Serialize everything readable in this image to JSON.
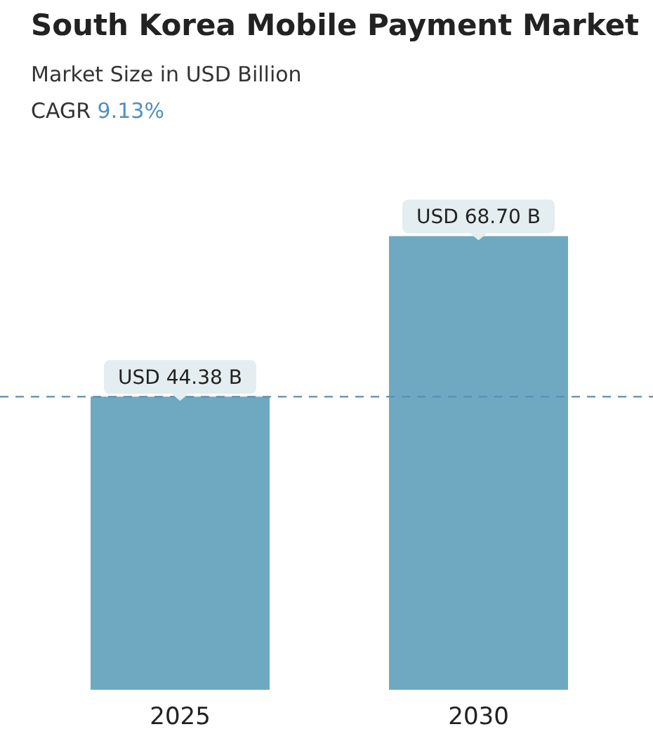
{
  "chart_data": {
    "type": "bar",
    "title": "South Korea Mobile Payment Market",
    "subtitle": "Market Size in USD Billion",
    "annotations": [
      "CAGR 9.13%"
    ],
    "categories": [
      "2025",
      "2030"
    ],
    "values": [
      44.38,
      68.7
    ],
    "color": "#6ea9c1",
    "value_labels": [
      "USD 44.38 B",
      "USD 68.70 B"
    ],
    "ref_lines": [
      {
        "axis": "y",
        "value": 44.38,
        "color": "#5b8db5",
        "line_style": "dashed"
      }
    ],
    "grid": false,
    "legend": false
  }
}
